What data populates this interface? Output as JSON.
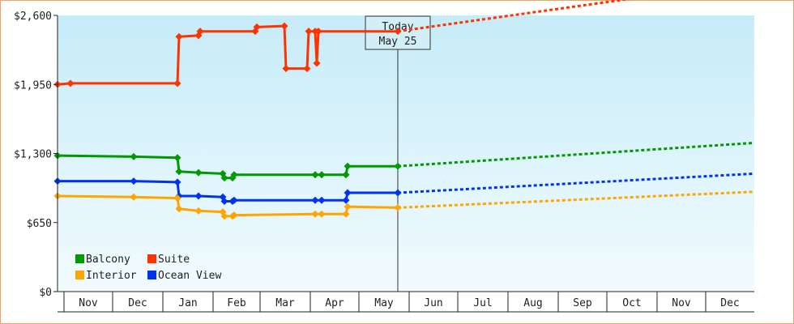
{
  "chart_data": {
    "type": "line",
    "title": "",
    "xlabel": "",
    "ylabel": "",
    "y_ticks": [
      "$0",
      "$650",
      "$1,300",
      "$1,950",
      "$2,600"
    ],
    "ylim": [
      0,
      2600
    ],
    "x_range": [
      "2015-10-28",
      "2016-12-31"
    ],
    "x_tick_labels": [
      "Nov",
      "Dec",
      "Jan",
      "Feb",
      "Mar",
      "Apr",
      "May",
      "Jun",
      "Jul",
      "Aug",
      "Sep",
      "Oct",
      "Nov",
      "Dec"
    ],
    "x_tick_dates": [
      "2015-11-01",
      "2015-12-01",
      "2016-01-01",
      "2016-02-01",
      "2016-03-01",
      "2016-04-01",
      "2016-05-01",
      "2016-06-01",
      "2016-07-01",
      "2016-08-01",
      "2016-09-01",
      "2016-10-01",
      "2016-11-01",
      "2016-12-01"
    ],
    "grid": false,
    "legend_position": "bottom-left",
    "annotation": {
      "line1": "Today",
      "line2": "May 25",
      "date": "2016-05-25"
    },
    "series": [
      {
        "name": "Suite",
        "color": "#ff3300",
        "values": [
          [
            "2015-10-28",
            1950
          ],
          [
            "2015-11-05",
            1960
          ],
          [
            "2016-01-10",
            1960
          ],
          [
            "2016-01-11",
            2400
          ],
          [
            "2016-01-23",
            2410
          ],
          [
            "2016-01-24",
            2450
          ],
          [
            "2016-02-27",
            2450
          ],
          [
            "2016-02-28",
            2490
          ],
          [
            "2016-03-16",
            2500
          ],
          [
            "2016-03-17",
            2100
          ],
          [
            "2016-03-30",
            2100
          ],
          [
            "2016-03-31",
            2450
          ],
          [
            "2016-04-04",
            2450
          ],
          [
            "2016-04-05",
            2150
          ],
          [
            "2016-04-06",
            2450
          ],
          [
            "2016-05-25",
            2450
          ]
        ],
        "forecast": [
          [
            "2016-05-25",
            2450
          ],
          [
            "2016-12-31",
            2920
          ]
        ]
      },
      {
        "name": "Balcony",
        "color": "#009900",
        "values": [
          [
            "2015-10-28",
            1280
          ],
          [
            "2015-12-14",
            1270
          ],
          [
            "2016-01-10",
            1260
          ],
          [
            "2016-01-11",
            1130
          ],
          [
            "2016-01-23",
            1120
          ],
          [
            "2016-02-07",
            1110
          ],
          [
            "2016-02-08",
            1070
          ],
          [
            "2016-02-13",
            1070
          ],
          [
            "2016-02-14",
            1100
          ],
          [
            "2016-04-04",
            1100
          ],
          [
            "2016-04-08",
            1100
          ],
          [
            "2016-04-23",
            1100
          ],
          [
            "2016-04-24",
            1180
          ],
          [
            "2016-05-25",
            1180
          ]
        ],
        "forecast": [
          [
            "2016-05-25",
            1180
          ],
          [
            "2016-12-31",
            1400
          ]
        ]
      },
      {
        "name": "Ocean View",
        "color": "#0033ee",
        "values": [
          [
            "2015-10-28",
            1040
          ],
          [
            "2015-12-14",
            1040
          ],
          [
            "2016-01-10",
            1030
          ],
          [
            "2016-01-11",
            900
          ],
          [
            "2016-01-23",
            900
          ],
          [
            "2016-02-07",
            890
          ],
          [
            "2016-02-08",
            850
          ],
          [
            "2016-02-13",
            850
          ],
          [
            "2016-02-14",
            860
          ],
          [
            "2016-04-04",
            860
          ],
          [
            "2016-04-08",
            860
          ],
          [
            "2016-04-23",
            860
          ],
          [
            "2016-04-24",
            930
          ],
          [
            "2016-05-25",
            930
          ]
        ],
        "forecast": [
          [
            "2016-05-25",
            930
          ],
          [
            "2016-12-31",
            1110
          ]
        ]
      },
      {
        "name": "Interior",
        "color": "#ffa500",
        "values": [
          [
            "2015-10-28",
            900
          ],
          [
            "2015-12-14",
            890
          ],
          [
            "2016-01-10",
            880
          ],
          [
            "2016-01-11",
            780
          ],
          [
            "2016-01-23",
            760
          ],
          [
            "2016-02-07",
            750
          ],
          [
            "2016-02-08",
            710
          ],
          [
            "2016-02-13",
            710
          ],
          [
            "2016-02-14",
            720
          ],
          [
            "2016-04-04",
            730
          ],
          [
            "2016-04-08",
            730
          ],
          [
            "2016-04-23",
            730
          ],
          [
            "2016-04-24",
            800
          ],
          [
            "2016-05-25",
            790
          ]
        ],
        "forecast": [
          [
            "2016-05-25",
            790
          ],
          [
            "2016-12-31",
            940
          ]
        ]
      }
    ],
    "legend": [
      {
        "name": "Balcony",
        "color": "#009900"
      },
      {
        "name": "Suite",
        "color": "#ff3300"
      },
      {
        "name": "Interior",
        "color": "#ffa500"
      },
      {
        "name": "Ocean View",
        "color": "#0033ee"
      }
    ]
  }
}
